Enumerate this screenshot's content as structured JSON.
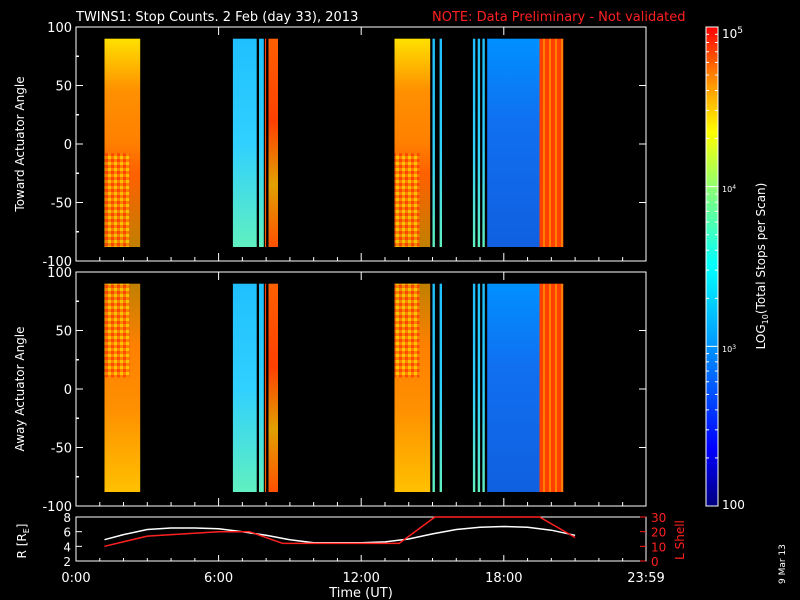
{
  "header": {
    "title": "TWINS1: Stop Counts.  2 Feb (day  33), 2013",
    "note": "NOTE: Data Preliminary - Not validated",
    "note_color": "#ff2020"
  },
  "chart_data": [
    {
      "type": "heatmap",
      "panel": "toward",
      "ylabel": "Toward Actuator Angle",
      "ylim": [
        -100,
        100
      ],
      "y_ticks": [
        "100",
        "50",
        "0",
        "-50",
        "-100"
      ],
      "x_range_hours": [
        0,
        23.983
      ],
      "data_y_range": [
        -88,
        90
      ],
      "segments": [
        {
          "start": 1.2,
          "end": 2.7,
          "pattern": "orange_gradient_low_mix"
        },
        {
          "start": 6.6,
          "end": 7.6,
          "pattern": "cyan"
        },
        {
          "start": 7.7,
          "end": 7.9,
          "pattern": "cyan"
        },
        {
          "start": 7.95,
          "end": 8.0,
          "pattern": "orange"
        },
        {
          "start": 8.1,
          "end": 8.5,
          "pattern": "mixed_orange"
        },
        {
          "start": 13.4,
          "end": 14.9,
          "pattern": "orange_gradient_low_mix"
        },
        {
          "start": 15.0,
          "end": 15.1,
          "pattern": "cyan"
        },
        {
          "start": 15.3,
          "end": 15.4,
          "pattern": "cyan"
        },
        {
          "start": 16.7,
          "end": 16.8,
          "pattern": "cyan"
        },
        {
          "start": 16.9,
          "end": 17.0,
          "pattern": "cyan"
        },
        {
          "start": 17.1,
          "end": 17.2,
          "pattern": "cyan"
        },
        {
          "start": 17.3,
          "end": 19.5,
          "pattern": "blue"
        },
        {
          "start": 19.5,
          "end": 20.5,
          "pattern": "orange_stripes"
        }
      ]
    },
    {
      "type": "heatmap",
      "panel": "away",
      "ylabel": "Away Actuator Angle",
      "ylim": [
        -100,
        100
      ],
      "y_ticks": [
        "100",
        "50",
        "0",
        "-50",
        "-100"
      ],
      "x_range_hours": [
        0,
        23.983
      ],
      "data_y_range": [
        -88,
        90
      ],
      "segments": [
        {
          "start": 1.2,
          "end": 2.7,
          "pattern": "orange_gradient_high_mix"
        },
        {
          "start": 6.6,
          "end": 7.6,
          "pattern": "cyan"
        },
        {
          "start": 7.7,
          "end": 7.9,
          "pattern": "cyan"
        },
        {
          "start": 7.95,
          "end": 8.0,
          "pattern": "orange"
        },
        {
          "start": 8.1,
          "end": 8.5,
          "pattern": "mixed_orange"
        },
        {
          "start": 13.4,
          "end": 14.9,
          "pattern": "orange_gradient_high_mix"
        },
        {
          "start": 15.0,
          "end": 15.1,
          "pattern": "cyan"
        },
        {
          "start": 15.3,
          "end": 15.4,
          "pattern": "cyan"
        },
        {
          "start": 16.7,
          "end": 16.8,
          "pattern": "cyan"
        },
        {
          "start": 16.9,
          "end": 17.0,
          "pattern": "cyan"
        },
        {
          "start": 17.1,
          "end": 17.2,
          "pattern": "cyan"
        },
        {
          "start": 17.3,
          "end": 19.5,
          "pattern": "blue"
        },
        {
          "start": 19.5,
          "end": 20.5,
          "pattern": "orange_stripes"
        }
      ]
    },
    {
      "type": "line",
      "panel": "orbit",
      "ylabel": "R [RE]",
      "y2label": "L Shell",
      "ylim": [
        2,
        8
      ],
      "y_ticks": [
        "8",
        "6",
        "4",
        "2"
      ],
      "y2lim": [
        0,
        30
      ],
      "y2_ticks": [
        "30",
        "20",
        "10",
        "0"
      ],
      "x_range_hours": [
        0,
        23.983
      ],
      "series": [
        {
          "role": "R",
          "color": "#ffffff",
          "x": [
            1.2,
            2.0,
            3.0,
            4.0,
            5.0,
            6.0,
            7.0,
            8.0,
            9.0,
            10.0,
            11.0,
            12.0,
            13.0,
            14.0,
            15.0,
            16.0,
            17.0,
            18.0,
            19.0,
            20.0,
            21.0
          ],
          "values": [
            4.9,
            5.6,
            6.3,
            6.5,
            6.5,
            6.4,
            6.0,
            5.5,
            4.9,
            4.5,
            4.5,
            4.5,
            4.6,
            5.0,
            5.7,
            6.3,
            6.6,
            6.7,
            6.6,
            6.2,
            5.5
          ]
        },
        {
          "role": "L",
          "color": "#ff2020",
          "x": [
            1.2,
            3.0,
            6.0,
            7.3,
            8.7,
            12.0,
            13.6,
            15.1,
            19.5,
            21.0
          ],
          "values": [
            10,
            17,
            20,
            20,
            12,
            12,
            12,
            30,
            30,
            16
          ]
        }
      ]
    }
  ],
  "colorbar": {
    "label": "LOG10(Total Stops per Scan)",
    "label_main": "LOG",
    "label_sub": "10",
    "label_rest": "(Total Stops per Scan)",
    "min_label": "100",
    "mid_label_base": "10",
    "mid_label_exp": "3",
    "upper_label_base": "10",
    "upper_label_exp": "4",
    "max_label_base": "10",
    "max_label_exp": "5"
  },
  "xaxis": {
    "label": "Time (UT)",
    "ticks": [
      "0:00",
      "6:00",
      "12:00",
      "18:00",
      "23:59"
    ]
  },
  "y_label_orbit_main": "R [R",
  "y_label_orbit_sub": "E",
  "y_label_orbit_end": "]",
  "footer_date": "9 Mar 13"
}
